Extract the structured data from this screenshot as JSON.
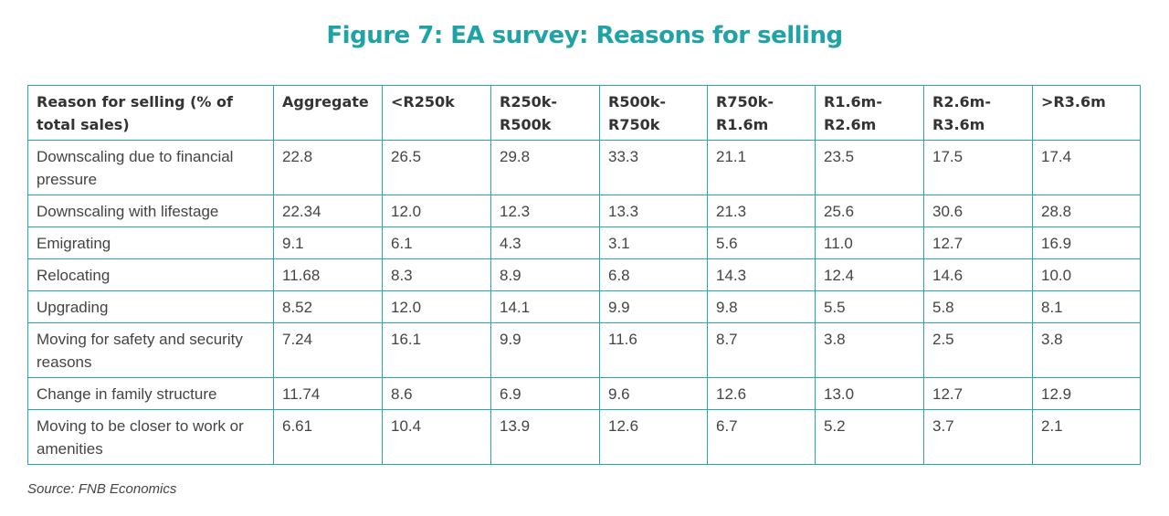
{
  "chart_data": {
    "type": "table",
    "title": "Figure 7: EA survey: Reasons for selling",
    "columns": [
      "Reason for selling (% of total sales)",
      "Aggregate",
      "<R250k",
      "R250k-\nR500k",
      "R500k-\nR750k",
      "R750k-\nR1.6m",
      "R1.6m-\nR2.6m",
      "R2.6m-\nR3.6m",
      ">R3.6m"
    ],
    "rows": [
      [
        "Downscaling due to financial pressure",
        "22.8",
        "26.5",
        "29.8",
        "33.3",
        "21.1",
        "23.5",
        "17.5",
        "17.4"
      ],
      [
        "Downscaling with lifestage",
        "22.34",
        "12.0",
        "12.3",
        "13.3",
        "21.3",
        "25.6",
        "30.6",
        "28.8"
      ],
      [
        "Emigrating",
        "9.1",
        "6.1",
        "4.3",
        "3.1",
        "5.6",
        "11.0",
        "12.7",
        "16.9"
      ],
      [
        "Relocating",
        "11.68",
        "8.3",
        "8.9",
        "6.8",
        "14.3",
        "12.4",
        "14.6",
        "10.0"
      ],
      [
        "Upgrading",
        "8.52",
        "12.0",
        "14.1",
        "9.9",
        "9.8",
        "5.5",
        "5.8",
        "8.1"
      ],
      [
        "Moving for safety and security reasons",
        "7.24",
        "16.1",
        "9.9",
        "11.6",
        "8.7",
        "3.8",
        "2.5",
        "3.8"
      ],
      [
        "Change in family structure",
        "11.74",
        "8.6",
        "6.9",
        "9.6",
        "12.6",
        "13.0",
        "12.7",
        "12.9"
      ],
      [
        "Moving to be closer to work or amenities",
        "6.61",
        "10.4",
        "13.9",
        "12.6",
        "6.7",
        "5.2",
        "3.7",
        "2.1"
      ]
    ],
    "source": "Source: FNB Economics",
    "colors": {
      "title": "#1fa3a6",
      "border": "#2aa7ac"
    }
  }
}
